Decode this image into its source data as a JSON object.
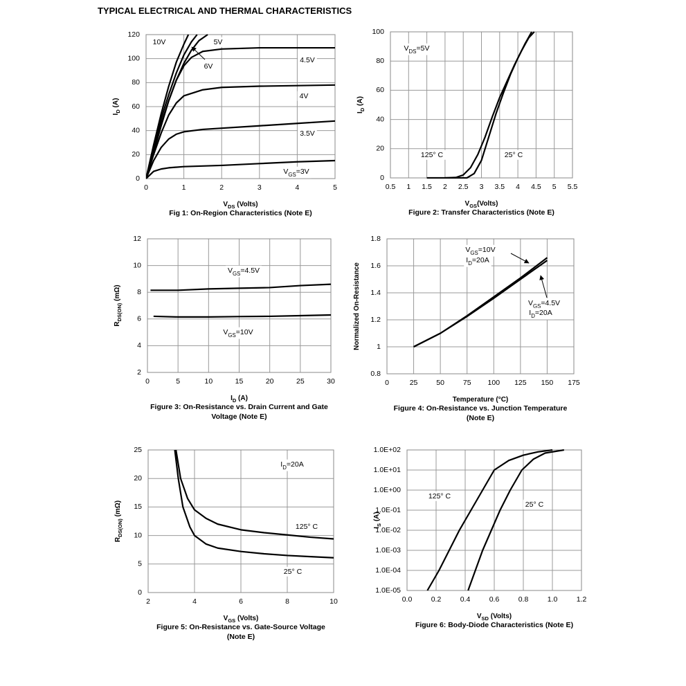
{
  "title": "TYPICAL ELECTRICAL AND THERMAL CHARACTERISTICS",
  "chart_data": [
    {
      "type": "line",
      "xlabel": [
        "V",
        "DS",
        " (Volts)"
      ],
      "ylabel": [
        "I",
        "D",
        " (A)"
      ],
      "caption": [
        "Fig 1: On-Region Characteristics (Note E)"
      ],
      "xlim": [
        0,
        5
      ],
      "xticks": [
        0,
        1,
        2,
        3,
        4,
        5
      ],
      "ylim": [
        0,
        120
      ],
      "yticks": [
        0,
        20,
        40,
        60,
        80,
        100,
        120
      ],
      "grid": true,
      "annotations": [
        [
          "10V"
        ],
        [
          "5V"
        ],
        [
          "6V"
        ],
        [
          "4.5V"
        ],
        [
          "4V"
        ],
        [
          "3.5V"
        ],
        [
          "V",
          "GS",
          "=3V"
        ]
      ],
      "series": [
        {
          "color": "#000000",
          "x": [
            0,
            0.2,
            0.4,
            0.6,
            0.8,
            1.0,
            1.12
          ],
          "values": [
            0,
            28,
            54,
            77,
            97,
            112,
            120
          ]
        },
        {
          "color": "#000000",
          "x": [
            0,
            0.2,
            0.4,
            0.6,
            0.8,
            1.0,
            1.2,
            1.35
          ],
          "values": [
            0,
            26,
            50,
            70,
            88,
            103,
            114,
            120
          ]
        },
        {
          "color": "#000000",
          "x": [
            0,
            0.2,
            0.4,
            0.6,
            0.8,
            1.0,
            1.2,
            1.4,
            1.63
          ],
          "values": [
            0,
            24,
            46,
            65,
            82,
            96,
            107,
            115,
            120
          ]
        },
        {
          "color": "#000000",
          "x": [
            0,
            0.2,
            0.4,
            0.6,
            0.8,
            1.0,
            1.2,
            1.5,
            2,
            3,
            4,
            5
          ],
          "values": [
            0,
            22,
            44,
            65,
            82,
            94,
            101,
            106,
            108,
            109,
            109,
            109
          ]
        },
        {
          "color": "#000000",
          "x": [
            0,
            0.2,
            0.4,
            0.6,
            0.8,
            1.0,
            1.5,
            2,
            3,
            4,
            5
          ],
          "values": [
            0,
            20,
            38,
            53,
            63,
            69,
            74,
            76,
            77,
            77.5,
            78
          ]
        },
        {
          "color": "#000000",
          "x": [
            0,
            0.2,
            0.4,
            0.6,
            0.8,
            1.0,
            1.5,
            2,
            3,
            4,
            5
          ],
          "values": [
            0,
            15,
            26,
            33,
            37,
            39,
            41,
            42,
            44,
            46,
            48
          ]
        },
        {
          "color": "#000000",
          "x": [
            0,
            0.1,
            0.2,
            0.4,
            0.6,
            1,
            2,
            3,
            4,
            5
          ],
          "values": [
            0,
            3,
            6,
            8,
            9,
            10,
            11,
            12.5,
            14,
            15
          ]
        }
      ]
    },
    {
      "type": "line",
      "xlabel": [
        "V",
        "GS",
        "(Volts)"
      ],
      "ylabel": [
        "I",
        "D",
        " (A)"
      ],
      "caption": [
        "Figure 2: Transfer Characteristics (Note E)"
      ],
      "xlim": [
        0.5,
        5.5
      ],
      "xticks": [
        0.5,
        1,
        1.5,
        2,
        2.5,
        3,
        3.5,
        4,
        4.5,
        5,
        5.5
      ],
      "ylim": [
        0,
        100
      ],
      "yticks": [
        0,
        20,
        40,
        60,
        80,
        100
      ],
      "grid": true,
      "annotations": [
        [
          "V",
          "DS",
          "=5V"
        ],
        [
          "125° C"
        ],
        [
          "25° C"
        ]
      ],
      "series": [
        {
          "color": "#000000",
          "x": [
            1.5,
            2,
            2.3,
            2.5,
            2.7,
            2.9,
            3.1,
            3.3,
            3.5,
            3.7,
            3.9,
            4.1,
            4.3,
            4.45
          ],
          "values": [
            0,
            0,
            0.3,
            2,
            7,
            16,
            28,
            42,
            55,
            66,
            77,
            87,
            96,
            100
          ]
        },
        {
          "color": "#000000",
          "x": [
            2,
            2.6,
            2.8,
            3,
            3.2,
            3.4,
            3.6,
            3.8,
            4,
            4.2,
            4.38
          ],
          "values": [
            0,
            0,
            3,
            12,
            28,
            44,
            58,
            71,
            82,
            92,
            100
          ]
        }
      ]
    },
    {
      "type": "line",
      "xlabel": [
        "I",
        "D",
        " (A)"
      ],
      "ylabel": [
        "R",
        "DS(ON)",
        " (mΩ)"
      ],
      "caption": [
        "Figure 3: On-Resistance vs. Drain Current and Gate",
        "Voltage (Note E)"
      ],
      "xlim": [
        0,
        30
      ],
      "xticks": [
        0,
        5,
        10,
        15,
        20,
        25,
        30
      ],
      "ylim": [
        2,
        12
      ],
      "yticks": [
        2,
        4,
        6,
        8,
        10,
        12
      ],
      "grid": true,
      "annotations": [
        [
          "V",
          "GS",
          "=4.5V"
        ],
        [
          "V",
          "GS",
          "=10V"
        ]
      ],
      "series": [
        {
          "color": "#000000",
          "x": [
            0.5,
            5,
            10,
            15,
            20,
            25,
            30
          ],
          "values": [
            8.15,
            8.15,
            8.25,
            8.3,
            8.35,
            8.5,
            8.6
          ]
        },
        {
          "color": "#000000",
          "x": [
            1,
            5,
            10,
            15,
            20,
            25,
            30
          ],
          "values": [
            6.2,
            6.15,
            6.15,
            6.18,
            6.2,
            6.25,
            6.3
          ]
        }
      ]
    },
    {
      "type": "line",
      "xlabel": [
        "Temperature (°C)"
      ],
      "ylabel": [
        "Normalized On-Resistance"
      ],
      "caption": [
        "Figure 4: On-Resistance vs. Junction Temperature",
        "(Note E)"
      ],
      "xlim": [
        0,
        175
      ],
      "xticks": [
        0,
        25,
        50,
        75,
        100,
        125,
        150,
        175
      ],
      "ylim": [
        0.8,
        1.8
      ],
      "yticks": [
        0.8,
        1,
        1.2,
        1.4,
        1.6,
        1.8
      ],
      "grid": true,
      "annotations": [
        [
          "V",
          "GS",
          "=10V"
        ],
        [
          "I",
          "D",
          "=20A"
        ],
        [
          "V",
          "GS",
          "=4.5V"
        ],
        [
          "I",
          "D",
          "=20A"
        ]
      ],
      "series": [
        {
          "color": "#000000",
          "x": [
            25,
            50,
            75,
            100,
            125,
            150
          ],
          "values": [
            1,
            1.1,
            1.23,
            1.37,
            1.51,
            1.66
          ]
        },
        {
          "color": "#000000",
          "x": [
            25,
            50,
            75,
            100,
            125,
            150
          ],
          "values": [
            1,
            1.1,
            1.225,
            1.36,
            1.5,
            1.64
          ]
        }
      ]
    },
    {
      "type": "line",
      "xlabel": [
        "V",
        "GS",
        " (Volts)"
      ],
      "ylabel": [
        "R",
        "DS(ON)",
        " (mΩ)"
      ],
      "caption": [
        "Figure 5: On-Resistance vs. Gate-Source Voltage",
        "(Note E)"
      ],
      "xlim": [
        2,
        10
      ],
      "xticks": [
        2,
        4,
        6,
        8,
        10
      ],
      "ylim": [
        0,
        25
      ],
      "yticks": [
        0,
        5,
        10,
        15,
        20,
        25
      ],
      "grid": true,
      "annotations": [
        [
          "I",
          "D",
          "=20A"
        ],
        [
          "125° C"
        ],
        [
          "25° C"
        ]
      ],
      "series": [
        {
          "color": "#000000",
          "x": [
            3.2,
            3.4,
            3.7,
            4,
            4.5,
            5,
            6,
            7,
            8,
            9,
            10
          ],
          "values": [
            25,
            20,
            16.5,
            14.5,
            13,
            12,
            11,
            10.5,
            10.1,
            9.7,
            9.4
          ]
        },
        {
          "color": "#000000",
          "x": [
            3.15,
            3.3,
            3.5,
            3.8,
            4,
            4.5,
            5,
            6,
            7,
            8,
            9,
            10
          ],
          "values": [
            25,
            20,
            15,
            11.5,
            10,
            8.5,
            7.8,
            7.2,
            6.8,
            6.5,
            6.3,
            6.1
          ]
        }
      ]
    },
    {
      "type": "line",
      "xlabel": [
        "V",
        "SD",
        " (Volts)"
      ],
      "ylabel": [
        "I",
        "S",
        " (A)"
      ],
      "caption": [
        "Figure 6: Body-Diode Characteristics (Note E)"
      ],
      "xlim": [
        0,
        1.2
      ],
      "xticks": [
        {
          "value": 0,
          "label": "0.0"
        },
        0.2,
        0.4,
        0.6,
        0.8,
        {
          "value": 1,
          "label": "1.0"
        },
        1.2
      ],
      "ylim": [
        1e-05,
        100
      ],
      "log_y": true,
      "yticks": [
        {
          "value": 1e-05,
          "label": "1.0E-05"
        },
        {
          "value": 0.0001,
          "label": "1.0E-04"
        },
        {
          "value": 0.001,
          "label": "1.0E-03"
        },
        {
          "value": 0.01,
          "label": "1.0E-02"
        },
        {
          "value": 0.1,
          "label": "1.0E-01"
        },
        {
          "value": 1,
          "label": "1.0E+00"
        },
        {
          "value": 10,
          "label": "1.0E+01"
        },
        {
          "value": 100,
          "label": "1.0E+02"
        }
      ],
      "grid": true,
      "annotations": [
        [
          "125° C"
        ],
        [
          "25° C"
        ]
      ],
      "series": [
        {
          "color": "#000000",
          "x": [
            0.14,
            0.22,
            0.29,
            0.36,
            0.44,
            0.52,
            0.6,
            0.7,
            0.8,
            0.9,
            1.0
          ],
          "values": [
            1e-05,
            0.0001,
            0.001,
            0.01,
            0.1,
            1,
            10,
            30,
            55,
            80,
            100
          ]
        },
        {
          "color": "#000000",
          "x": [
            0.42,
            0.47,
            0.52,
            0.58,
            0.64,
            0.71,
            0.79,
            0.87,
            0.95,
            1.08
          ],
          "values": [
            1e-05,
            0.0001,
            0.001,
            0.01,
            0.1,
            1,
            10,
            35,
            70,
            100
          ]
        }
      ]
    }
  ]
}
